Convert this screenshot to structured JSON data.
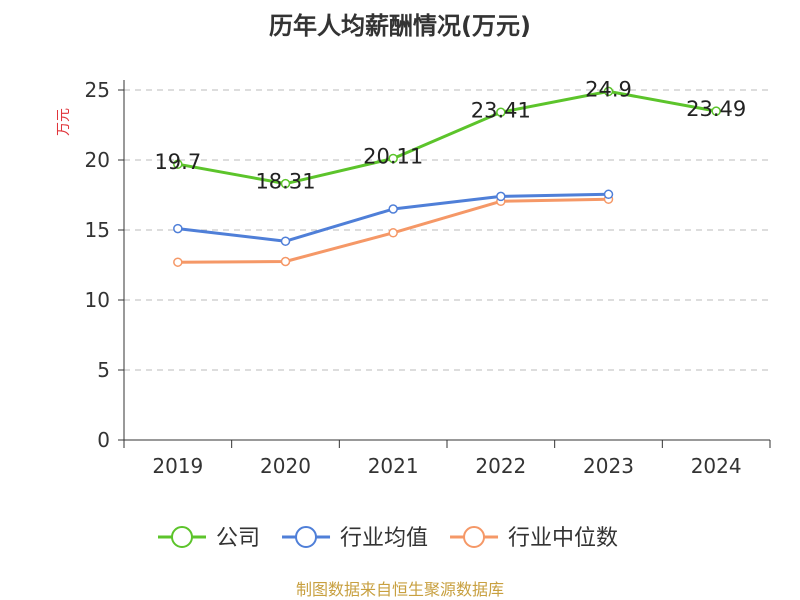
{
  "chart_data": {
    "type": "line",
    "title": "历年人均薪酬情况(万元)",
    "ylabel": "万元",
    "categories": [
      "2019",
      "2020",
      "2021",
      "2022",
      "2023",
      "2024"
    ],
    "ylim": [
      0,
      25
    ],
    "yticks": [
      0,
      5,
      10,
      15,
      20,
      25
    ],
    "grid": true,
    "legend_position": "bottom",
    "series": [
      {
        "name": "公司",
        "color": "#5cc42b",
        "values": [
          19.7,
          18.31,
          20.11,
          23.41,
          24.9,
          23.49
        ],
        "labels": [
          "19.7",
          "18.31",
          "20.11",
          "23.41",
          "24.9",
          "23.49"
        ]
      },
      {
        "name": "行业均值",
        "color": "#4f7fd8",
        "values": [
          15.1,
          14.2,
          16.5,
          17.4,
          17.55,
          null
        ]
      },
      {
        "name": "行业中位数",
        "color": "#f59867",
        "values": [
          12.7,
          12.75,
          14.8,
          17.05,
          17.2,
          null
        ]
      }
    ]
  },
  "colors": {
    "ylabel": "#e0353b",
    "source": "#c8a040",
    "grid": "#bbbbbb",
    "axis": "#333333"
  },
  "source_text": "制图数据来自恒生聚源数据库"
}
